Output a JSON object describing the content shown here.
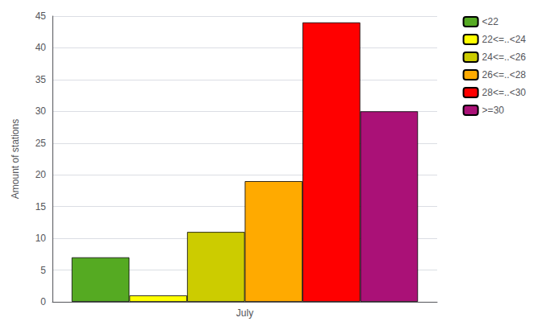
{
  "chart_data": {
    "type": "bar",
    "categories": [
      "July"
    ],
    "series": [
      {
        "name": "<22",
        "color": "#55aa22",
        "values": [
          7
        ]
      },
      {
        "name": "22<=..<24",
        "color": "#ffff00",
        "values": [
          1
        ]
      },
      {
        "name": "24<=..<26",
        "color": "#cccc00",
        "values": [
          11
        ]
      },
      {
        "name": "26<=..<28",
        "color": "#ffaa00",
        "values": [
          19
        ]
      },
      {
        "name": "28<=..<30",
        "color": "#ff0000",
        "values": [
          44
        ]
      },
      {
        "name": ">=30",
        "color": "#aa1177",
        "values": [
          30
        ]
      }
    ],
    "ylabel": "Amount of stations",
    "ylim": [
      0,
      45
    ],
    "yticks": [
      0,
      5,
      10,
      15,
      20,
      25,
      30,
      35,
      40,
      45
    ],
    "grid": true,
    "legend": "upper right"
  }
}
